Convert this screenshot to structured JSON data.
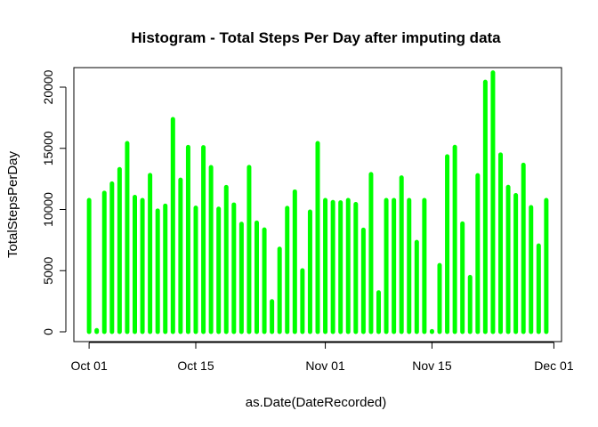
{
  "chart_data": {
    "type": "bar",
    "title": "Histogram - Total Steps Per Day after imputing data",
    "xlabel": "as.Date(DateRecorded)",
    "ylabel": "TotalStepsPerDay",
    "x_range": [
      "2012-09-29",
      "2012-12-02"
    ],
    "ylim": [
      -800,
      21600
    ],
    "x_ticks": [
      {
        "date": "2012-10-01",
        "label": "Oct 01"
      },
      {
        "date": "2012-10-15",
        "label": "Oct 15"
      },
      {
        "date": "2012-11-01",
        "label": "Nov 01"
      },
      {
        "date": "2012-11-15",
        "label": "Nov 15"
      },
      {
        "date": "2012-12-01",
        "label": "Dec 01"
      }
    ],
    "y_ticks": [
      0,
      5000,
      10000,
      15000,
      20000
    ],
    "grid": false,
    "bar_color": "#00ff00",
    "x": [
      "2012-10-01",
      "2012-10-02",
      "2012-10-03",
      "2012-10-04",
      "2012-10-05",
      "2012-10-06",
      "2012-10-07",
      "2012-10-08",
      "2012-10-09",
      "2012-10-10",
      "2012-10-11",
      "2012-10-12",
      "2012-10-13",
      "2012-10-14",
      "2012-10-15",
      "2012-10-16",
      "2012-10-17",
      "2012-10-18",
      "2012-10-19",
      "2012-10-20",
      "2012-10-21",
      "2012-10-22",
      "2012-10-23",
      "2012-10-24",
      "2012-10-25",
      "2012-10-26",
      "2012-10-27",
      "2012-10-28",
      "2012-10-29",
      "2012-10-30",
      "2012-10-31",
      "2012-11-01",
      "2012-11-02",
      "2012-11-03",
      "2012-11-04",
      "2012-11-05",
      "2012-11-06",
      "2012-11-07",
      "2012-11-08",
      "2012-11-09",
      "2012-11-10",
      "2012-11-11",
      "2012-11-12",
      "2012-11-13",
      "2012-11-14",
      "2012-11-15",
      "2012-11-16",
      "2012-11-17",
      "2012-11-18",
      "2012-11-19",
      "2012-11-20",
      "2012-11-21",
      "2012-11-22",
      "2012-11-23",
      "2012-11-24",
      "2012-11-25",
      "2012-11-26",
      "2012-11-27",
      "2012-11-28",
      "2012-11-29",
      "2012-11-30"
    ],
    "values": [
      10766,
      126,
      11352,
      12116,
      13294,
      15420,
      11015,
      10766,
      12811,
      9900,
      10304,
      17382,
      12426,
      15098,
      10139,
      15084,
      13452,
      10056,
      11829,
      10395,
      8821,
      13460,
      8918,
      8355,
      2492,
      6778,
      10119,
      11458,
      5018,
      9819,
      15414,
      10766,
      10600,
      10571,
      10766,
      10439,
      8334,
      12883,
      3219,
      10766,
      10766,
      12608,
      10765,
      7336,
      10766,
      41,
      5441,
      14339,
      15110,
      8841,
      4472,
      12787,
      20427,
      21194,
      14478,
      11834,
      11162,
      13646,
      10183,
      7047,
      10766
    ]
  }
}
